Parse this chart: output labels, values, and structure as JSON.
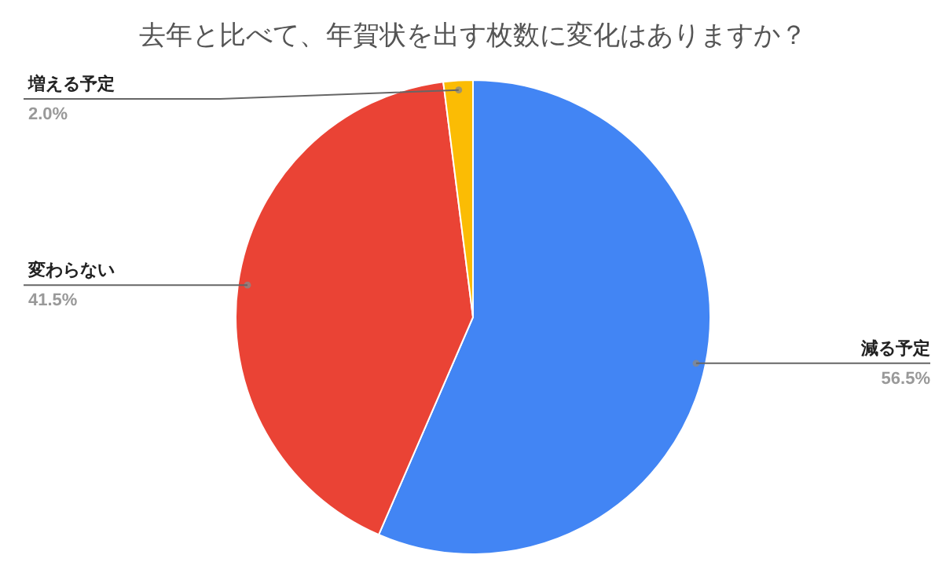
{
  "chart_data": {
    "type": "pie",
    "title": "去年と比べて、年賀状を出す枚数に変化はありますか？",
    "categories": [
      "減る予定",
      "変わらない",
      "増える予定"
    ],
    "values": [
      56.5,
      41.5,
      2.0
    ],
    "colors": [
      "#4285f4",
      "#ea4335",
      "#fbbc04"
    ],
    "value_labels": [
      "56.5%",
      "41.5%",
      "2.0%"
    ]
  }
}
